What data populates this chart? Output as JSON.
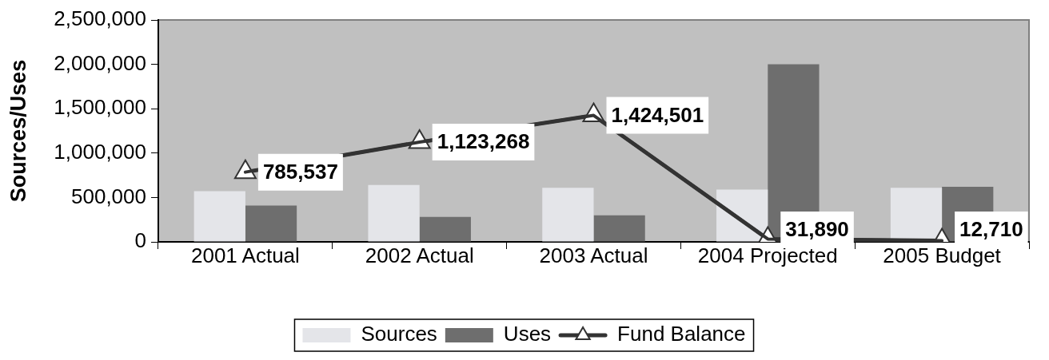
{
  "chart_data": {
    "type": "bar",
    "ylabel": "Sources/Uses",
    "categories": [
      "2001 Actual",
      "2002 Actual",
      "2003 Actual",
      "2004 Projected",
      "2005 Budget"
    ],
    "series": [
      {
        "name": "Sources",
        "color": "#e4e5e9",
        "values": [
          570000,
          640000,
          610000,
          590000,
          610000
        ]
      },
      {
        "name": "Uses",
        "color": "#6e6e6e",
        "values": [
          410000,
          280000,
          300000,
          2000000,
          620000
        ]
      },
      {
        "name": "Fund Balance",
        "type": "line",
        "color": "#333333",
        "marker": "triangle",
        "values": [
          785537,
          1123268,
          1424501,
          31890,
          12710
        ],
        "value_labels": [
          "785,537",
          "1,123,268",
          "1,424,501",
          "31,890",
          "12,710"
        ]
      }
    ],
    "ylim": [
      0,
      2500000
    ],
    "yticks": [
      0,
      {
        "value": 500000,
        "label": "500,000"
      },
      {
        "value": 1000000,
        "label": "1,000,000"
      },
      {
        "value": 1500000,
        "label": "1,500,000"
      },
      {
        "value": 2000000,
        "label": "2,000,000"
      },
      {
        "value": 2500000,
        "label": "2,500,000"
      }
    ],
    "legend": "bottom"
  }
}
